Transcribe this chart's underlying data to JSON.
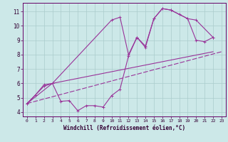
{
  "background_color": "#cce8e8",
  "grid_color": "#aacccc",
  "line_color": "#993399",
  "xlabel": "Windchill (Refroidissement éolien,°C)",
  "xlim_min": -0.5,
  "xlim_max": 23.5,
  "ylim_min": 3.7,
  "ylim_max": 11.6,
  "yticks": [
    4,
    5,
    6,
    7,
    8,
    9,
    10,
    11
  ],
  "xticks": [
    0,
    1,
    2,
    3,
    4,
    5,
    6,
    7,
    8,
    9,
    10,
    11,
    12,
    13,
    14,
    15,
    16,
    17,
    18,
    19,
    20,
    21,
    22,
    23
  ],
  "line1_x": [
    0,
    1,
    2,
    3,
    4,
    5,
    6,
    7,
    8,
    9,
    10,
    11,
    12,
    13,
    14,
    15,
    16,
    17,
    18,
    19,
    20,
    21,
    22
  ],
  "line1_y": [
    4.6,
    5.2,
    5.8,
    6.0,
    4.75,
    4.8,
    4.1,
    4.45,
    4.45,
    4.35,
    5.15,
    5.6,
    7.9,
    9.2,
    8.5,
    10.5,
    11.2,
    11.1,
    10.8,
    10.5,
    9.0,
    8.9,
    9.2
  ],
  "line2_x": [
    0,
    1,
    2,
    3,
    10,
    11,
    12,
    13,
    14,
    15,
    16,
    17,
    19,
    20,
    22
  ],
  "line2_y": [
    4.6,
    5.2,
    5.9,
    6.0,
    10.4,
    10.6,
    8.0,
    9.2,
    8.6,
    10.5,
    11.2,
    11.1,
    10.5,
    10.4,
    9.2
  ],
  "line3_x": [
    0,
    3,
    22
  ],
  "line3_y": [
    4.6,
    6.0,
    8.2
  ],
  "line4_x": [
    0,
    23
  ],
  "line4_y": [
    4.6,
    8.2
  ],
  "lw": 0.8,
  "ms": 2.8,
  "tick_fontsize": 5,
  "xlabel_fontsize": 5.5
}
